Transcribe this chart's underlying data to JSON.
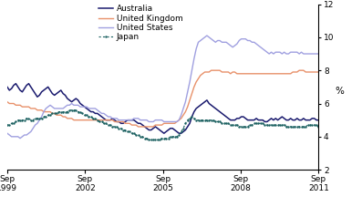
{
  "title": "",
  "ylabel": "%",
  "ylim": [
    2,
    12
  ],
  "yticks": [
    2,
    4,
    6,
    8,
    10,
    12
  ],
  "x_start": 1999.75,
  "x_end": 2011.75,
  "xtick_positions": [
    1999.75,
    2002.75,
    2005.75,
    2008.75,
    2011.75
  ],
  "xtick_labels": [
    "Sep\n1999",
    "Sep\n2002",
    "Sep\n2005",
    "Sep\n2008",
    "Sep\n2011"
  ],
  "legend_entries": [
    "Australia",
    "United Kingdom",
    "United States",
    "Japan"
  ],
  "colors": {
    "australia": "#1a1a6e",
    "uk": "#e8916a",
    "us": "#a0a0e0",
    "japan": "#1a6060"
  },
  "background_color": "#ffffff",
  "australia": [
    7.0,
    6.8,
    6.9,
    7.1,
    7.2,
    7.0,
    6.8,
    6.7,
    6.9,
    7.1,
    7.2,
    7.0,
    6.8,
    6.6,
    6.4,
    6.5,
    6.7,
    6.8,
    6.9,
    7.0,
    6.8,
    6.6,
    6.5,
    6.6,
    6.7,
    6.8,
    6.6,
    6.5,
    6.3,
    6.2,
    6.1,
    6.2,
    6.3,
    6.2,
    6.0,
    5.9,
    5.8,
    5.7,
    5.6,
    5.5,
    5.5,
    5.4,
    5.4,
    5.3,
    5.2,
    5.1,
    5.0,
    5.0,
    5.0,
    5.1,
    5.0,
    4.9,
    4.9,
    4.8,
    4.8,
    4.9,
    5.0,
    5.0,
    5.0,
    5.0,
    4.9,
    4.8,
    4.8,
    4.7,
    4.6,
    4.5,
    4.4,
    4.4,
    4.5,
    4.6,
    4.5,
    4.4,
    4.3,
    4.2,
    4.3,
    4.4,
    4.5,
    4.5,
    4.4,
    4.3,
    4.2,
    4.2,
    4.3,
    4.4,
    4.6,
    4.8,
    5.2,
    5.5,
    5.7,
    5.8,
    5.9,
    6.0,
    6.1,
    6.2,
    6.0,
    5.9,
    5.8,
    5.7,
    5.6,
    5.5,
    5.4,
    5.3,
    5.2,
    5.1,
    5.0,
    5.0,
    5.0,
    5.1,
    5.1,
    5.2,
    5.2,
    5.1,
    5.0,
    5.0,
    5.0,
    5.0,
    5.1,
    5.0,
    5.0,
    5.0,
    4.9,
    4.9,
    5.0,
    5.1,
    5.0,
    5.1,
    5.0,
    5.1,
    5.2,
    5.1,
    5.0,
    5.0,
    5.1,
    5.0,
    5.0,
    5.1,
    5.0,
    5.0,
    5.1,
    5.0,
    5.0,
    5.0,
    5.1,
    5.1,
    5.0,
    5.0
  ],
  "uk": [
    6.1,
    6.0,
    6.0,
    6.0,
    5.9,
    5.9,
    5.9,
    5.8,
    5.8,
    5.8,
    5.8,
    5.7,
    5.7,
    5.7,
    5.6,
    5.6,
    5.6,
    5.5,
    5.5,
    5.5,
    5.5,
    5.4,
    5.4,
    5.3,
    5.3,
    5.3,
    5.2,
    5.2,
    5.1,
    5.1,
    5.1,
    5.0,
    5.0,
    5.0,
    5.0,
    5.0,
    5.0,
    5.0,
    5.0,
    5.0,
    5.0,
    5.0,
    5.0,
    5.0,
    5.0,
    5.0,
    5.0,
    5.0,
    5.0,
    5.0,
    4.9,
    4.9,
    4.9,
    4.9,
    4.9,
    4.8,
    4.8,
    4.8,
    4.7,
    4.7,
    4.7,
    4.6,
    4.6,
    4.6,
    4.6,
    4.6,
    4.6,
    4.6,
    4.6,
    4.7,
    4.7,
    4.7,
    4.7,
    4.8,
    4.8,
    4.8,
    4.8,
    4.8,
    4.8,
    4.9,
    5.0,
    5.1,
    5.3,
    5.5,
    5.8,
    6.2,
    6.6,
    7.0,
    7.3,
    7.5,
    7.7,
    7.8,
    7.9,
    7.9,
    7.9,
    8.0,
    8.0,
    8.0,
    8.0,
    8.0,
    7.9,
    7.9,
    7.9,
    7.9,
    7.8,
    7.9,
    7.9,
    7.8,
    7.8,
    7.8,
    7.8,
    7.8,
    7.8,
    7.8,
    7.8,
    7.8,
    7.8,
    7.8,
    7.8,
    7.8,
    7.8,
    7.8,
    7.8,
    7.8,
    7.8,
    7.8,
    7.8,
    7.8,
    7.8,
    7.8,
    7.8,
    7.8,
    7.8,
    7.9,
    7.9,
    7.9,
    8.0,
    8.0,
    8.0,
    7.9,
    7.9,
    7.9,
    7.9,
    7.9,
    7.9,
    7.9
  ],
  "us": [
    4.2,
    4.1,
    4.0,
    4.0,
    4.0,
    4.0,
    3.9,
    4.0,
    4.1,
    4.1,
    4.2,
    4.3,
    4.5,
    4.7,
    4.8,
    5.0,
    5.2,
    5.5,
    5.7,
    5.8,
    5.9,
    5.8,
    5.7,
    5.7,
    5.7,
    5.7,
    5.7,
    5.8,
    5.9,
    5.9,
    6.0,
    5.9,
    5.9,
    5.9,
    5.8,
    5.8,
    5.8,
    5.8,
    5.7,
    5.7,
    5.7,
    5.7,
    5.6,
    5.5,
    5.4,
    5.4,
    5.3,
    5.2,
    5.2,
    5.1,
    5.1,
    5.1,
    5.0,
    5.0,
    5.0,
    5.0,
    5.0,
    5.0,
    5.0,
    5.1,
    5.1,
    5.1,
    5.0,
    5.0,
    5.0,
    5.0,
    4.9,
    4.9,
    4.9,
    5.0,
    5.0,
    5.0,
    5.0,
    4.9,
    4.9,
    4.9,
    4.9,
    4.9,
    4.9,
    4.9,
    5.0,
    5.3,
    5.7,
    6.1,
    6.7,
    7.3,
    8.0,
    8.7,
    9.3,
    9.7,
    9.8,
    9.9,
    10.0,
    10.1,
    10.0,
    9.9,
    9.8,
    9.7,
    9.8,
    9.8,
    9.7,
    9.7,
    9.7,
    9.6,
    9.5,
    9.4,
    9.5,
    9.6,
    9.8,
    9.9,
    9.9,
    9.9,
    9.8,
    9.8,
    9.7,
    9.7,
    9.6,
    9.5,
    9.4,
    9.3,
    9.2,
    9.1,
    9.0,
    9.1,
    9.0,
    9.1,
    9.1,
    9.1,
    9.0,
    9.1,
    9.0,
    9.0,
    9.1,
    9.1,
    9.1,
    9.1,
    9.0,
    9.1,
    9.0,
    9.0,
    9.0,
    9.0,
    9.0,
    9.0,
    9.0,
    9.0
  ],
  "japan": [
    4.7,
    4.7,
    4.8,
    4.8,
    4.9,
    5.0,
    5.0,
    5.0,
    5.0,
    5.1,
    5.1,
    5.0,
    5.0,
    5.1,
    5.1,
    5.1,
    5.1,
    5.2,
    5.2,
    5.3,
    5.3,
    5.4,
    5.4,
    5.4,
    5.5,
    5.5,
    5.5,
    5.5,
    5.5,
    5.6,
    5.6,
    5.6,
    5.6,
    5.5,
    5.5,
    5.4,
    5.3,
    5.3,
    5.2,
    5.2,
    5.1,
    5.1,
    5.0,
    4.9,
    4.9,
    4.8,
    4.8,
    4.7,
    4.7,
    4.6,
    4.6,
    4.6,
    4.5,
    4.5,
    4.4,
    4.4,
    4.3,
    4.3,
    4.2,
    4.2,
    4.1,
    4.1,
    4.0,
    4.0,
    3.9,
    3.9,
    3.8,
    3.8,
    3.8,
    3.8,
    3.8,
    3.8,
    3.9,
    3.9,
    3.9,
    3.9,
    4.0,
    4.0,
    4.0,
    4.0,
    4.1,
    4.3,
    4.5,
    4.8,
    5.0,
    5.1,
    5.2,
    5.1,
    5.0,
    5.0,
    5.0,
    5.0,
    5.0,
    5.0,
    5.0,
    5.0,
    5.0,
    4.9,
    4.9,
    4.9,
    4.8,
    4.8,
    4.8,
    4.8,
    4.7,
    4.7,
    4.7,
    4.7,
    4.6,
    4.6,
    4.6,
    4.6,
    4.6,
    4.7,
    4.7,
    4.8,
    4.8,
    4.8,
    4.8,
    4.8,
    4.7,
    4.7,
    4.7,
    4.7,
    4.7,
    4.7,
    4.7,
    4.7,
    4.7,
    4.7,
    4.6,
    4.6,
    4.6,
    4.6,
    4.6,
    4.6,
    4.6,
    4.6,
    4.6,
    4.6,
    4.7,
    4.7,
    4.7,
    4.7,
    4.7,
    4.6
  ]
}
